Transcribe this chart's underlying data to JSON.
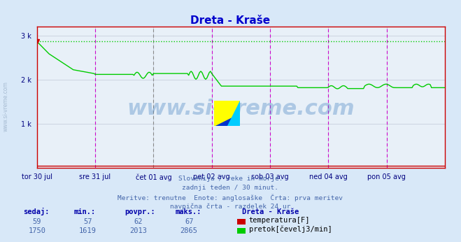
{
  "title": "Dreta - Kraše",
  "title_color": "#0000cc",
  "background_color": "#d8e8f8",
  "plot_bg_color": "#e8f0f8",
  "grid_color": "#c0c8d8",
  "x_tick_labels": [
    "tor 30 jul",
    "sre 31 jul",
    "čet 01 avg",
    "pet 02 avg",
    "sob 03 avg",
    "ned 04 avg",
    "pon 05 avg"
  ],
  "x_tick_positions": [
    0,
    48,
    96,
    144,
    192,
    240,
    288
  ],
  "ytick_labels": [
    "",
    "1 k",
    "2 k",
    "3 k"
  ],
  "ytick_positions": [
    0,
    1000,
    2000,
    3000
  ],
  "ylim": [
    0,
    3200
  ],
  "xlim": [
    0,
    336
  ],
  "num_points": 337,
  "flow_color": "#00cc00",
  "temp_color": "#cc0000",
  "dotted_line_color": "#00cc00",
  "vline_color_magenta": "#cc00cc",
  "watermark_text": "www.si-vreme.com",
  "watermark_color": "#4080c0",
  "watermark_alpha": 0.35,
  "subtitle_lines": [
    "Slovenija / reke in morje.",
    "zadnji teden / 30 minut.",
    "Meritve: trenutne  Enote: anglosaške  Črta: prva meritev",
    "navpična črta - razdelek 24 ur"
  ],
  "subtitle_color": "#4466aa",
  "legend_title": "Dreta - Kraše",
  "legend_items": [
    {
      "label": "temperatura[F]",
      "color": "#cc0000"
    },
    {
      "label": "pretok[čevelj3/min]",
      "color": "#00cc00"
    }
  ],
  "stats_headers": [
    "sedaj:",
    "min.:",
    "povpr.:",
    "maks.:"
  ],
  "stats_temp": [
    59,
    57,
    62,
    67
  ],
  "stats_flow": [
    1750,
    1619,
    2013,
    2865
  ]
}
